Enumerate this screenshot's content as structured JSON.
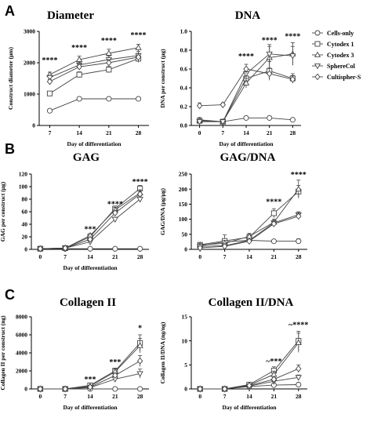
{
  "panel_letters": [
    "A",
    "B",
    "C"
  ],
  "legend": {
    "entries": [
      {
        "name": "Cells-only",
        "marker": "circle"
      },
      {
        "name": "Cytodex 1",
        "marker": "square"
      },
      {
        "name": "Cytodex 3",
        "marker": "triangle-up"
      },
      {
        "name": "SphereCol",
        "marker": "triangle-down"
      },
      {
        "name": "Cultispher-S",
        "marker": "diamond"
      }
    ],
    "placement": "right of top row"
  },
  "chart_data": [
    {
      "type": "line",
      "title": "Diameter",
      "xlabel": "Day of differentiation",
      "ylabel": "Construct diameter (μm)",
      "x": [
        7,
        14,
        21,
        28
      ],
      "xticks": [
        "7",
        "14",
        "21",
        "28"
      ],
      "xlim": [
        4.5,
        30.5
      ],
      "ylim": [
        0,
        3000
      ],
      "yticks": [
        "0",
        "1000",
        "2000",
        "3000"
      ],
      "yticks_values": [
        0,
        1000,
        2000,
        3000
      ],
      "series": [
        {
          "name": "Cells-only",
          "marker": "circle",
          "values": [
            470,
            850,
            850,
            850
          ],
          "err": [
            40,
            30,
            30,
            30
          ]
        },
        {
          "name": "Cytodex 1",
          "marker": "square",
          "values": [
            1020,
            1620,
            1780,
            2130
          ],
          "err": [
            60,
            90,
            100,
            120
          ]
        },
        {
          "name": "Cytodex 3",
          "marker": "triangle-up",
          "values": [
            1620,
            2100,
            2300,
            2480
          ],
          "err": [
            80,
            110,
            130,
            110
          ]
        },
        {
          "name": "SphereCol",
          "marker": "triangle-down",
          "values": [
            1530,
            1930,
            2100,
            2230
          ],
          "err": [
            70,
            90,
            110,
            130
          ]
        },
        {
          "name": "Cultispher-S",
          "marker": "diamond",
          "values": [
            1400,
            1870,
            2000,
            2180
          ],
          "err": [
            70,
            90,
            100,
            120
          ]
        }
      ],
      "annotations": [
        {
          "text": "****",
          "x": 7,
          "y": 2000
        },
        {
          "text": "****",
          "x": 14,
          "y": 2400
        },
        {
          "text": "****",
          "x": 21,
          "y": 2620
        },
        {
          "text": "****",
          "x": 28,
          "y": 2800
        }
      ]
    },
    {
      "type": "line",
      "title": "DNA",
      "xlabel": "Day of differentiation",
      "ylabel": "DNA per construct (μg)",
      "x": [
        0,
        7,
        14,
        21,
        28
      ],
      "xticks": [
        "0",
        "7",
        "14",
        "21",
        "28"
      ],
      "xlim": [
        -2.5,
        30.5
      ],
      "ylim": [
        0,
        1.0
      ],
      "yticks": [
        "0.0",
        "0.2",
        "0.4",
        "0.6",
        "0.8",
        "1.0"
      ],
      "yticks_values": [
        0,
        0.2,
        0.4,
        0.6,
        0.8,
        1.0
      ],
      "series": [
        {
          "name": "Cells-only",
          "marker": "circle",
          "values": [
            0.06,
            0.04,
            0.08,
            0.08,
            0.06
          ],
          "err": [
            0.01,
            0.01,
            0.01,
            0.01,
            0.01
          ]
        },
        {
          "name": "Cytodex 1",
          "marker": "square",
          "values": [
            0.05,
            0.04,
            0.5,
            0.58,
            0.5
          ],
          "err": [
            0.01,
            0.01,
            0.05,
            0.1,
            0.05
          ]
        },
        {
          "name": "Cytodex 3",
          "marker": "triangle-up",
          "values": [
            0.05,
            0.04,
            0.45,
            0.72,
            0.76
          ],
          "err": [
            0.01,
            0.01,
            0.05,
            0.12,
            0.12
          ]
        },
        {
          "name": "SphereCol",
          "marker": "triangle-down",
          "values": [
            0.04,
            0.04,
            0.55,
            0.76,
            0.74
          ],
          "err": [
            0.01,
            0.01,
            0.06,
            0.1,
            0.1
          ]
        },
        {
          "name": "Cultispher-S",
          "marker": "diamond",
          "values": [
            0.21,
            0.22,
            0.6,
            0.55,
            0.49
          ],
          "err": [
            0.03,
            0.02,
            0.05,
            0.06,
            0.04
          ]
        }
      ],
      "annotations": [
        {
          "text": "****",
          "x": 14,
          "y": 0.71
        },
        {
          "text": "****",
          "x": 21,
          "y": 0.88
        },
        {
          "text": "****",
          "x": 28,
          "y": 0.92
        }
      ]
    },
    {
      "type": "line",
      "title": "GAG",
      "xlabel": "Day of differentiation",
      "ylabel": "GAG per construct (μg)",
      "x": [
        0,
        7,
        14,
        21,
        28
      ],
      "xticks": [
        "0",
        "7",
        "14",
        "21",
        "28"
      ],
      "xlim": [
        -2.5,
        30.5
      ],
      "ylim": [
        0,
        120
      ],
      "yticks": [
        "0",
        "20",
        "40",
        "60",
        "80",
        "100",
        "120"
      ],
      "yticks_values": [
        0,
        20,
        40,
        60,
        80,
        100,
        120
      ],
      "series": [
        {
          "name": "Cells-only",
          "marker": "circle",
          "values": [
            1,
            1,
            1,
            1,
            1
          ],
          "err": [
            0.5,
            0.5,
            0.5,
            0.5,
            0.5
          ]
        },
        {
          "name": "Cytodex 1",
          "marker": "square",
          "values": [
            1,
            2,
            20,
            65,
            97
          ],
          "err": [
            0.5,
            1,
            3,
            4,
            5
          ]
        },
        {
          "name": "Cytodex 3",
          "marker": "triangle-up",
          "values": [
            1,
            2,
            22,
            63,
            90
          ],
          "err": [
            0.5,
            1,
            3,
            4,
            5
          ]
        },
        {
          "name": "SphereCol",
          "marker": "triangle-down",
          "values": [
            1,
            2,
            12,
            48,
            80
          ],
          "err": [
            0.5,
            1,
            2,
            3,
            5
          ]
        },
        {
          "name": "Cultispher-S",
          "marker": "diamond",
          "values": [
            1,
            2,
            16,
            58,
            88
          ],
          "err": [
            0.5,
            1,
            2,
            4,
            5
          ]
        }
      ],
      "annotations": [
        {
          "text": "***",
          "x": 14,
          "y": 28
        },
        {
          "text": "****",
          "x": 21,
          "y": 68
        },
        {
          "text": "****",
          "x": 28,
          "y": 104
        }
      ]
    },
    {
      "type": "line",
      "title": "GAG/DNA",
      "xlabel": "",
      "ylabel": "GAG/DNA (μg/μg)",
      "x": [
        0,
        7,
        14,
        21,
        28
      ],
      "xticks": [
        "0",
        "7",
        "14",
        "21",
        "28"
      ],
      "xlim": [
        -2.5,
        30.5
      ],
      "ylim": [
        0,
        250
      ],
      "yticks": [
        "0",
        "50",
        "100",
        "150",
        "200",
        "250"
      ],
      "yticks_values": [
        0,
        50,
        100,
        150,
        200,
        250
      ],
      "series": [
        {
          "name": "Cells-only",
          "marker": "circle",
          "values": [
            12,
            25,
            30,
            27,
            27
          ],
          "err": [
            4,
            8,
            6,
            5,
            8
          ]
        },
        {
          "name": "Cytodex 1",
          "marker": "square",
          "values": [
            15,
            28,
            40,
            120,
            192
          ],
          "err": [
            5,
            20,
            10,
            15,
            20
          ]
        },
        {
          "name": "Cytodex 3",
          "marker": "triangle-up",
          "values": [
            14,
            20,
            43,
            90,
            200
          ],
          "err": [
            5,
            10,
            10,
            10,
            30
          ]
        },
        {
          "name": "SphereCol",
          "marker": "triangle-down",
          "values": [
            10,
            12,
            30,
            88,
            115
          ],
          "err": [
            4,
            5,
            6,
            8,
            10
          ]
        },
        {
          "name": "Cultispher-S",
          "marker": "diamond",
          "values": [
            5,
            10,
            27,
            85,
            110
          ],
          "err": [
            2,
            4,
            5,
            8,
            10
          ]
        }
      ],
      "annotations": [
        {
          "text": "****",
          "x": 21,
          "y": 150
        },
        {
          "text": "****",
          "x": 28,
          "y": 240
        }
      ]
    },
    {
      "type": "line",
      "title": "Collagen II",
      "xlabel": "Day of differentiation",
      "ylabel": "Collagen II per construct (ng)",
      "x": [
        0,
        7,
        14,
        21,
        28
      ],
      "xticks": [
        "0",
        "7",
        "14",
        "21",
        "28"
      ],
      "xlim": [
        -2.5,
        30.5
      ],
      "ylim": [
        0,
        8000
      ],
      "yticks": [
        "0",
        "2000",
        "4000",
        "6000",
        "8000"
      ],
      "yticks_values": [
        0,
        2000,
        4000,
        6000,
        8000
      ],
      "series": [
        {
          "name": "Cells-only",
          "marker": "circle",
          "values": [
            0,
            0,
            0,
            0,
            0
          ],
          "err": [
            0,
            0,
            20,
            20,
            20
          ]
        },
        {
          "name": "Cytodex 1",
          "marker": "square",
          "values": [
            0,
            0,
            400,
            2000,
            5100
          ],
          "err": [
            0,
            0,
            100,
            300,
            900
          ]
        },
        {
          "name": "Cytodex 3",
          "marker": "triangle-up",
          "values": [
            0,
            0,
            300,
            1900,
            4800
          ],
          "err": [
            0,
            0,
            100,
            300,
            800
          ]
        },
        {
          "name": "SphereCol",
          "marker": "triangle-down",
          "values": [
            0,
            0,
            150,
            1100,
            1700
          ],
          "err": [
            0,
            0,
            80,
            200,
            500
          ]
        },
        {
          "name": "Cultispher-S",
          "marker": "diamond",
          "values": [
            0,
            0,
            200,
            1500,
            3100
          ],
          "err": [
            0,
            0,
            80,
            250,
            600
          ]
        }
      ],
      "annotations": [
        {
          "text": "***",
          "x": 14,
          "y": 800
        },
        {
          "text": "***",
          "x": 21,
          "y": 2700
        },
        {
          "text": "*",
          "x": 28,
          "y": 6500
        }
      ]
    },
    {
      "type": "line",
      "title": "Collagen II/DNA",
      "xlabel": "Day of differentiation",
      "ylabel": "Collagen II/DNA (ng/ng)",
      "x": [
        0,
        7,
        14,
        21,
        28
      ],
      "xticks": [
        "0",
        "7",
        "14",
        "21",
        "28"
      ],
      "xlim": [
        -2.5,
        30.5
      ],
      "ylim": [
        0,
        15
      ],
      "yticks": [
        "0",
        "5",
        "10",
        "15"
      ],
      "yticks_values": [
        0,
        5,
        10,
        15
      ],
      "series": [
        {
          "name": "Cells-only",
          "marker": "circle",
          "values": [
            0,
            0,
            0.5,
            0.8,
            0.9
          ],
          "err": [
            0,
            0,
            0.1,
            0.2,
            0.2
          ]
        },
        {
          "name": "Cytodex 1",
          "marker": "square",
          "values": [
            0,
            0,
            0.9,
            3.8,
            10
          ],
          "err": [
            0,
            0,
            0.2,
            0.8,
            2
          ]
        },
        {
          "name": "Cytodex 3",
          "marker": "triangle-up",
          "values": [
            0,
            0,
            0.8,
            3.0,
            9.6
          ],
          "err": [
            0,
            0,
            0.2,
            0.7,
            2
          ]
        },
        {
          "name": "SphereCol",
          "marker": "triangle-down",
          "values": [
            0,
            0,
            0.6,
            1.6,
            2.4
          ],
          "err": [
            0,
            0,
            0.1,
            0.4,
            0.5
          ]
        },
        {
          "name": "Cultispher-S",
          "marker": "diamond",
          "values": [
            0,
            0,
            0.7,
            2.0,
            4.2
          ],
          "err": [
            0,
            0,
            0.1,
            0.4,
            0.8
          ]
        }
      ],
      "annotations": [
        {
          "text": "~***",
          "x": 21,
          "y": 5.2
        },
        {
          "text": "~****",
          "x": 28,
          "y": 12.8
        }
      ]
    }
  ]
}
